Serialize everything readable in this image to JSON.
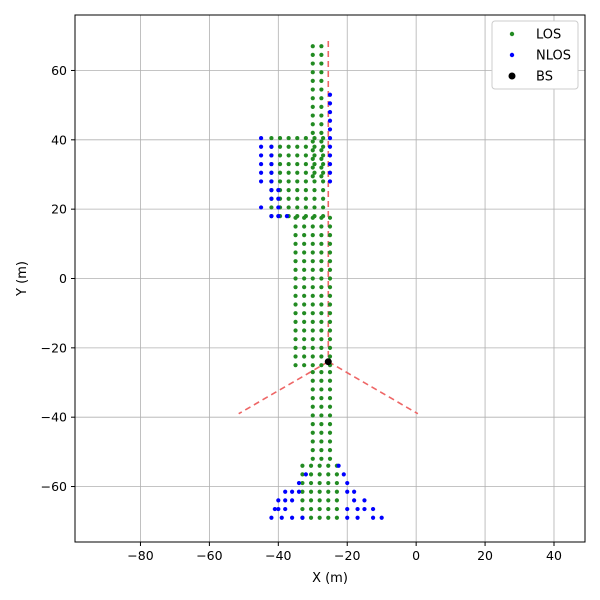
{
  "chart_data": {
    "type": "scatter",
    "xlabel": "X (m)",
    "ylabel": "Y (m)",
    "xlim": [
      -99,
      49
    ],
    "ylim": [
      -76,
      76
    ],
    "x_ticks": [
      -80,
      -60,
      -40,
      -20,
      0,
      20,
      40
    ],
    "y_ticks": [
      -60,
      -40,
      -20,
      0,
      20,
      40,
      60
    ],
    "x_tick_labels": [
      "−80",
      "−60",
      "−40",
      "−20",
      "0",
      "20",
      "40"
    ],
    "y_tick_labels": [
      "−60",
      "−40",
      "−20",
      "0",
      "20",
      "40",
      "60"
    ],
    "grid": true,
    "legend_position": "top-right",
    "colors": {
      "LOS": "#228B22",
      "NLOS": "#0000FF",
      "BS": "#000000",
      "beam": "#EE6666"
    },
    "series": [
      {
        "name": "LOS",
        "regions": [
          {
            "x": [
              -30,
              -26
            ],
            "y": [
              29.5,
              68
            ]
          },
          {
            "x": [
              -42,
              -26
            ],
            "y": [
              18,
              40.5
            ]
          },
          {
            "x": [
              -35,
              -25
            ],
            "y": [
              -25,
              18
            ]
          },
          {
            "x": [
              -30,
              -25
            ],
            "y": [
              -52,
              -25
            ]
          },
          {
            "x": [
              -33,
              -21
            ],
            "y": [
              -69,
              -52
            ]
          }
        ],
        "step": 2.5
      },
      {
        "name": "NLOS",
        "points": [
          [
            -25,
            53
          ],
          [
            -25,
            50.5
          ],
          [
            -25,
            48
          ],
          [
            -25,
            45.5
          ],
          [
            -25,
            43
          ],
          [
            -25,
            40.5
          ],
          [
            -25,
            38
          ],
          [
            -25,
            35.5
          ],
          [
            -25,
            33
          ],
          [
            -25,
            30.5
          ],
          [
            -25,
            28
          ],
          [
            -45,
            40.5
          ],
          [
            -45,
            38
          ],
          [
            -45,
            35.5
          ],
          [
            -45,
            33
          ],
          [
            -45,
            30.5
          ],
          [
            -45,
            28
          ],
          [
            -45,
            20.5
          ],
          [
            -42,
            38
          ],
          [
            -42,
            35.5
          ],
          [
            -42,
            33
          ],
          [
            -42,
            30.5
          ],
          [
            -42,
            28
          ],
          [
            -42,
            25.5
          ],
          [
            -42,
            23
          ],
          [
            -42,
            18
          ],
          [
            -40,
            25.5
          ],
          [
            -40,
            23
          ],
          [
            -40,
            20.5
          ],
          [
            -40,
            18
          ],
          [
            -37.5,
            18
          ],
          [
            -22.5,
            -54
          ],
          [
            -21,
            -56.5
          ],
          [
            -20,
            -59
          ],
          [
            -20,
            -61.5
          ],
          [
            -18,
            -61.5
          ],
          [
            -18,
            -64
          ],
          [
            -15,
            -64
          ],
          [
            -15,
            -66.5
          ],
          [
            -12.5,
            -66.5
          ],
          [
            -12.5,
            -69
          ],
          [
            -10,
            -69
          ],
          [
            -17,
            -66.5
          ],
          [
            -17,
            -69
          ],
          [
            -20,
            -66.5
          ],
          [
            -20,
            -69
          ],
          [
            -32,
            -56.5
          ],
          [
            -34,
            -59
          ],
          [
            -34,
            -61.5
          ],
          [
            -36,
            -61.5
          ],
          [
            -36,
            -64
          ],
          [
            -38,
            -61.5
          ],
          [
            -38,
            -64
          ],
          [
            -38,
            -66.5
          ],
          [
            -40,
            -64
          ],
          [
            -40,
            -66.5
          ],
          [
            -41,
            -66.5
          ],
          [
            -42,
            -69
          ],
          [
            -39,
            -69
          ],
          [
            -36,
            -69
          ],
          [
            -33,
            -69
          ]
        ]
      },
      {
        "name": "BS",
        "points": [
          [
            -25.5,
            -24
          ]
        ]
      }
    ],
    "beam_lines": [
      [
        [
          -25.5,
          68.5
        ],
        [
          -25.5,
          -24
        ]
      ],
      [
        [
          -25.5,
          -24
        ],
        [
          -51.5,
          -39
        ]
      ],
      [
        [
          -25.5,
          -24
        ],
        [
          0.5,
          -39
        ]
      ]
    ]
  }
}
